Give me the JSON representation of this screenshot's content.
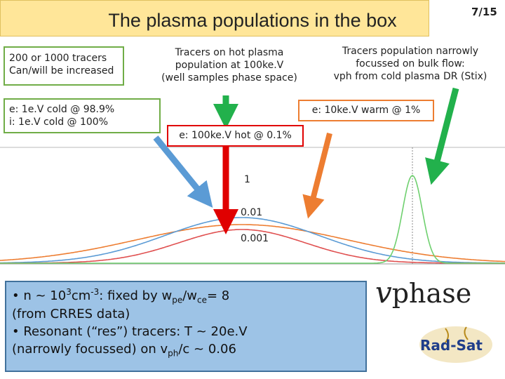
{
  "header": {
    "title": "The plasma populations in the box",
    "page": "7/15"
  },
  "boxes": {
    "tracers": {
      "lines": [
        "200 or 1000 tracers",
        "Can/will be increased"
      ]
    },
    "cold": {
      "lines": [
        "e: 1e.V cold @ 98.9%",
        "i: 1e.V cold @ 100%"
      ]
    },
    "hot_tracers": {
      "lines": [
        "Tracers on hot plasma",
        "population at 100ke.V",
        "(well samples phase space)"
      ]
    },
    "narrow_tracers": {
      "lines": [
        "Tracers population narrowly",
        "focussed  on bulk flow:",
        "vph from cold plasma DR (Stix)"
      ]
    },
    "warm": {
      "lines": [
        "e: 10ke.V warm @ 1%"
      ]
    },
    "hot": {
      "lines": [
        "e: 100ke.V hot @ 0.1%"
      ]
    }
  },
  "plot_labels": [
    "1",
    "0.01",
    "0.001"
  ],
  "notes": {
    "lines": [
      [
        "• n ~ 10",
        "3",
        "cm",
        "-3",
        ":  fixed by w",
        "pe",
        "/w",
        "ce",
        "= 8"
      ],
      [
        "(from CRRES data)"
      ],
      [
        "• Resonant (“res”) tracers: T ~ 20e.V"
      ],
      [
        "(narrowly focussed) on v",
        "ph",
        "/c ~ 0.06"
      ]
    ]
  },
  "axis_label": {
    "symbol": "v",
    "text": "phase"
  },
  "logo": "Rad-Sat"
}
